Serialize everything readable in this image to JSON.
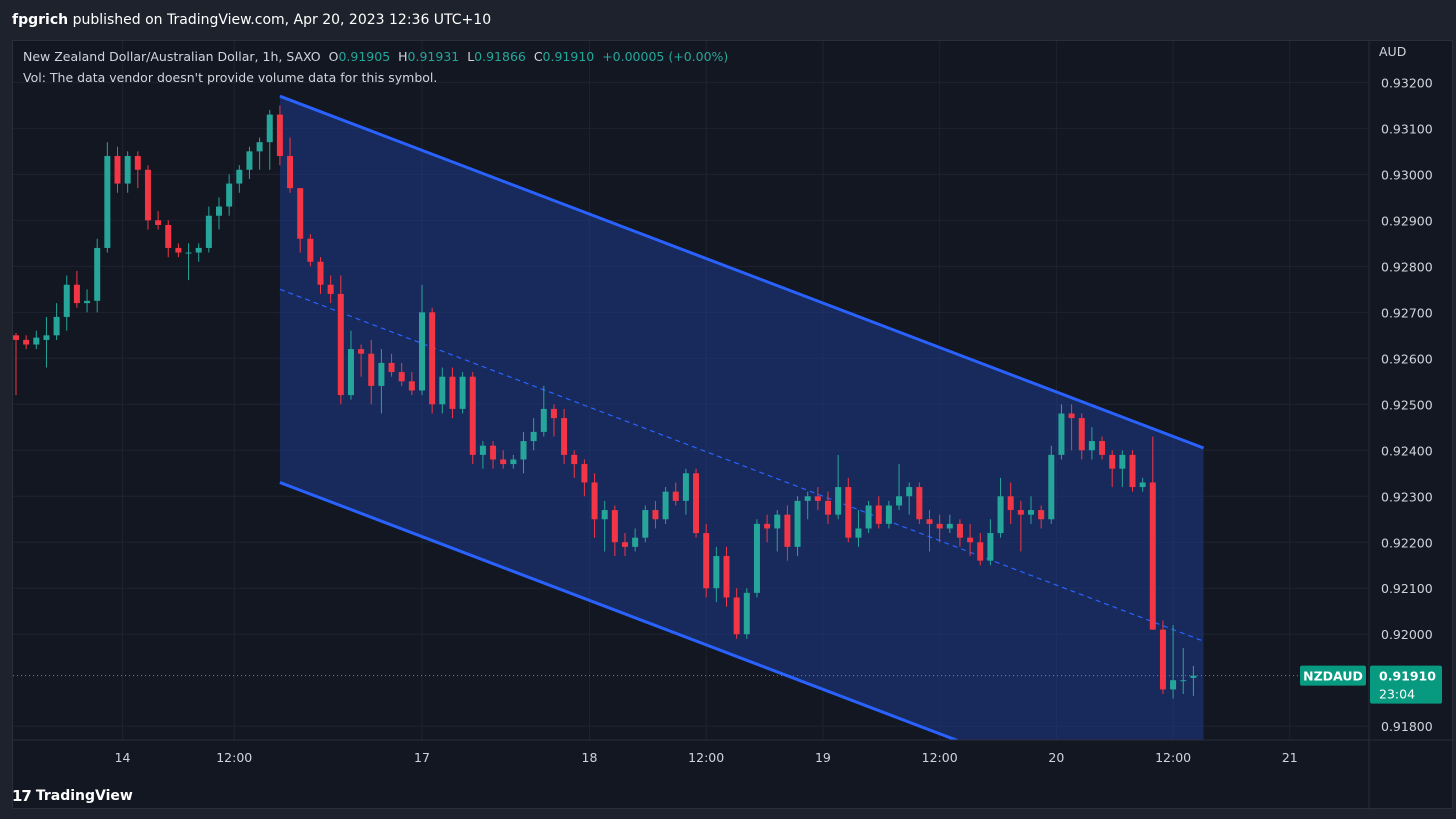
{
  "header": {
    "author": "fpgrich",
    "published_text": "published on TradingView.com, Apr 20, 2023 12:36 UTC+10"
  },
  "legend": {
    "symbol": "New Zealand Dollar/Australian Dollar, 1h, SAXO",
    "o_label": "O",
    "o_value": "0.91905",
    "h_label": "H",
    "h_value": "0.91931",
    "l_label": "L",
    "l_value": "0.91866",
    "c_label": "C",
    "c_value": "0.91910",
    "change": "+0.00005 (+0.00%)",
    "vol_note": "Vol: The data vendor doesn't provide volume data for this symbol."
  },
  "footer": {
    "brand": "TradingView",
    "logo_icon": "tradingview-logo-icon"
  },
  "colors": {
    "up": "#26a69a",
    "down": "#f23645",
    "channel_line": "#2962ff",
    "channel_fill": "#1e3a8a",
    "price_tag": "#089981"
  },
  "chart_data": {
    "type": "candlestick",
    "currency_label": "AUD",
    "yaxis_ticks": [
      "0.93200",
      "0.93100",
      "0.93000",
      "0.92900",
      "0.92800",
      "0.92700",
      "0.92600",
      "0.92500",
      "0.92400",
      "0.92300",
      "0.92200",
      "0.92100",
      "0.92000",
      "0.91800"
    ],
    "xaxis_ticks": [
      "14",
      "12:00",
      "17",
      "18",
      "12:00",
      "19",
      "12:00",
      "20",
      "12:00",
      "21"
    ],
    "ylim": [
      0.9177,
      0.9329
    ],
    "last_price": {
      "symbol": "NZDAUD",
      "value": "0.91910",
      "countdown": "23:04"
    },
    "candles": [
      [
        0.9265,
        0.92655,
        0.9252,
        0.9264
      ],
      [
        0.9264,
        0.9265,
        0.9262,
        0.9263
      ],
      [
        0.9263,
        0.9266,
        0.9262,
        0.92645
      ],
      [
        0.9264,
        0.9269,
        0.9258,
        0.9265
      ],
      [
        0.9265,
        0.9272,
        0.9264,
        0.9269
      ],
      [
        0.9269,
        0.9278,
        0.9266,
        0.9276
      ],
      [
        0.9276,
        0.9279,
        0.9271,
        0.9272
      ],
      [
        0.9272,
        0.9275,
        0.927,
        0.92725
      ],
      [
        0.92725,
        0.9286,
        0.927,
        0.9284
      ],
      [
        0.9284,
        0.9307,
        0.9283,
        0.9304
      ],
      [
        0.9304,
        0.9306,
        0.9296,
        0.9298
      ],
      [
        0.9298,
        0.9305,
        0.9296,
        0.9304
      ],
      [
        0.9304,
        0.9305,
        0.9297,
        0.9301
      ],
      [
        0.9301,
        0.9302,
        0.9288,
        0.929
      ],
      [
        0.929,
        0.9292,
        0.9288,
        0.9289
      ],
      [
        0.9289,
        0.929,
        0.9282,
        0.9284
      ],
      [
        0.9284,
        0.9285,
        0.9282,
        0.9283
      ],
      [
        0.9283,
        0.9285,
        0.9277,
        0.9283
      ],
      [
        0.9283,
        0.9285,
        0.9281,
        0.9284
      ],
      [
        0.9284,
        0.9293,
        0.9283,
        0.9291
      ],
      [
        0.9291,
        0.9295,
        0.9288,
        0.9293
      ],
      [
        0.9293,
        0.93,
        0.9291,
        0.9298
      ],
      [
        0.9298,
        0.9302,
        0.9296,
        0.9301
      ],
      [
        0.9301,
        0.9306,
        0.9299,
        0.9305
      ],
      [
        0.9305,
        0.9308,
        0.9301,
        0.9307
      ],
      [
        0.9307,
        0.9314,
        0.9301,
        0.9313
      ],
      [
        0.9313,
        0.9315,
        0.9302,
        0.9304
      ],
      [
        0.9304,
        0.9308,
        0.9296,
        0.9297
      ],
      [
        0.9297,
        0.9297,
        0.9283,
        0.9286
      ],
      [
        0.9286,
        0.9287,
        0.928,
        0.9281
      ],
      [
        0.9281,
        0.9282,
        0.9274,
        0.9276
      ],
      [
        0.9276,
        0.9278,
        0.9272,
        0.9274
      ],
      [
        0.9274,
        0.9278,
        0.925,
        0.9252
      ],
      [
        0.9252,
        0.9266,
        0.9251,
        0.9262
      ],
      [
        0.9262,
        0.9263,
        0.9256,
        0.9261
      ],
      [
        0.9261,
        0.9264,
        0.925,
        0.9254
      ],
      [
        0.9254,
        0.9262,
        0.9248,
        0.9259
      ],
      [
        0.9259,
        0.9261,
        0.9256,
        0.9257
      ],
      [
        0.9257,
        0.9259,
        0.9254,
        0.9255
      ],
      [
        0.9255,
        0.9257,
        0.9252,
        0.9253
      ],
      [
        0.9253,
        0.9276,
        0.9252,
        0.927
      ],
      [
        0.927,
        0.9271,
        0.9248,
        0.925
      ],
      [
        0.925,
        0.9258,
        0.9248,
        0.9256
      ],
      [
        0.9256,
        0.9258,
        0.9247,
        0.9249
      ],
      [
        0.9249,
        0.9257,
        0.9248,
        0.9256
      ],
      [
        0.9256,
        0.9257,
        0.9237,
        0.9239
      ],
      [
        0.9239,
        0.9242,
        0.9236,
        0.9241
      ],
      [
        0.9241,
        0.9242,
        0.9236,
        0.9238
      ],
      [
        0.9238,
        0.924,
        0.9236,
        0.9237
      ],
      [
        0.9237,
        0.9239,
        0.9236,
        0.9238
      ],
      [
        0.9238,
        0.9244,
        0.9235,
        0.9242
      ],
      [
        0.9242,
        0.9247,
        0.924,
        0.9244
      ],
      [
        0.9244,
        0.9254,
        0.9243,
        0.9249
      ],
      [
        0.9249,
        0.925,
        0.9243,
        0.9247
      ],
      [
        0.9247,
        0.9249,
        0.9237,
        0.9239
      ],
      [
        0.9239,
        0.924,
        0.9234,
        0.9237
      ],
      [
        0.9237,
        0.9238,
        0.923,
        0.9233
      ],
      [
        0.9233,
        0.9235,
        0.9221,
        0.9225
      ],
      [
        0.9225,
        0.9229,
        0.9218,
        0.9227
      ],
      [
        0.9227,
        0.9228,
        0.9217,
        0.922
      ],
      [
        0.922,
        0.9222,
        0.9217,
        0.9219
      ],
      [
        0.9219,
        0.9223,
        0.9218,
        0.9221
      ],
      [
        0.9221,
        0.9228,
        0.922,
        0.9227
      ],
      [
        0.9227,
        0.9229,
        0.9223,
        0.9225
      ],
      [
        0.9225,
        0.9232,
        0.9224,
        0.9231
      ],
      [
        0.9231,
        0.9233,
        0.9228,
        0.9229
      ],
      [
        0.9229,
        0.9236,
        0.9226,
        0.9235
      ],
      [
        0.9235,
        0.9236,
        0.9221,
        0.9222
      ],
      [
        0.9222,
        0.9224,
        0.9208,
        0.921
      ],
      [
        0.921,
        0.9219,
        0.9207,
        0.9217
      ],
      [
        0.9217,
        0.9219,
        0.9206,
        0.9208
      ],
      [
        0.9208,
        0.921,
        0.9199,
        0.92
      ],
      [
        0.92,
        0.921,
        0.9199,
        0.9209
      ],
      [
        0.9209,
        0.9225,
        0.9208,
        0.9224
      ],
      [
        0.9224,
        0.9226,
        0.922,
        0.9223
      ],
      [
        0.9223,
        0.9227,
        0.9218,
        0.9226
      ],
      [
        0.9226,
        0.9228,
        0.9216,
        0.9219
      ],
      [
        0.9219,
        0.923,
        0.9217,
        0.9229
      ],
      [
        0.9229,
        0.9231,
        0.9225,
        0.923
      ],
      [
        0.923,
        0.9232,
        0.9227,
        0.9229
      ],
      [
        0.9229,
        0.9231,
        0.9224,
        0.9226
      ],
      [
        0.9226,
        0.9239,
        0.9225,
        0.9232
      ],
      [
        0.9232,
        0.9234,
        0.922,
        0.9221
      ],
      [
        0.9221,
        0.9227,
        0.9219,
        0.9223
      ],
      [
        0.9223,
        0.9229,
        0.9222,
        0.9228
      ],
      [
        0.9228,
        0.923,
        0.9223,
        0.9224
      ],
      [
        0.9224,
        0.9229,
        0.9223,
        0.9228
      ],
      [
        0.9228,
        0.9237,
        0.9227,
        0.923
      ],
      [
        0.923,
        0.9233,
        0.9226,
        0.9232
      ],
      [
        0.9232,
        0.9233,
        0.9224,
        0.9225
      ],
      [
        0.9225,
        0.9227,
        0.9218,
        0.9224
      ],
      [
        0.9224,
        0.9226,
        0.922,
        0.9223
      ],
      [
        0.9223,
        0.9226,
        0.9222,
        0.9224
      ],
      [
        0.9224,
        0.9225,
        0.9219,
        0.9221
      ],
      [
        0.9221,
        0.9224,
        0.9217,
        0.922
      ],
      [
        0.922,
        0.9222,
        0.9215,
        0.9216
      ],
      [
        0.9216,
        0.9225,
        0.9215,
        0.9222
      ],
      [
        0.9222,
        0.9234,
        0.9221,
        0.923
      ],
      [
        0.923,
        0.9233,
        0.9224,
        0.9227
      ],
      [
        0.9227,
        0.9229,
        0.9218,
        0.9226
      ],
      [
        0.9226,
        0.923,
        0.9224,
        0.9227
      ],
      [
        0.9227,
        0.9228,
        0.9223,
        0.9225
      ],
      [
        0.9225,
        0.9241,
        0.9224,
        0.9239
      ],
      [
        0.9239,
        0.925,
        0.9238,
        0.9248
      ],
      [
        0.9248,
        0.925,
        0.924,
        0.9247
      ],
      [
        0.9247,
        0.9248,
        0.9238,
        0.924
      ],
      [
        0.924,
        0.9245,
        0.9238,
        0.9242
      ],
      [
        0.9242,
        0.9243,
        0.9238,
        0.9239
      ],
      [
        0.9239,
        0.924,
        0.9232,
        0.9236
      ],
      [
        0.9236,
        0.924,
        0.9232,
        0.9239
      ],
      [
        0.9239,
        0.924,
        0.9231,
        0.9232
      ],
      [
        0.9232,
        0.9234,
        0.9231,
        0.9233
      ],
      [
        0.9233,
        0.9243,
        0.9201,
        0.9201
      ],
      [
        0.9201,
        0.9203,
        0.9187,
        0.9188
      ],
      [
        0.9188,
        0.9202,
        0.9186,
        0.919
      ],
      [
        0.919,
        0.9197,
        0.9187,
        0.919
      ],
      [
        0.91905,
        0.91931,
        0.91866,
        0.9191
      ]
    ],
    "channel": {
      "upper_start": [
        26,
        0.9317
      ],
      "upper_end": [
        117,
        0.92405
      ],
      "lower_start": [
        26,
        0.9233
      ],
      "lower_end": [
        117,
        0.91565
      ],
      "mid_start": [
        26,
        0.9275
      ],
      "mid_end": [
        117,
        0.91985
      ]
    }
  }
}
